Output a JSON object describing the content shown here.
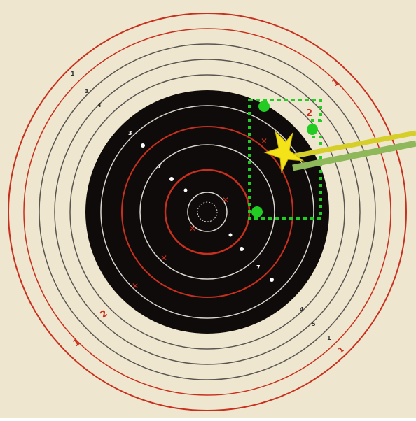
{
  "target": {
    "paper_color": "#efe6cf",
    "bull_color": "#0e0b0a",
    "ring_colors": {
      "red": "#c8301e",
      "gray": "#5a5550",
      "light": "#d8d6cf"
    },
    "outer_ring_labels": [
      {
        "text": "1",
        "color": "#c8301e"
      },
      {
        "text": "1",
        "color": "#c8301e"
      },
      {
        "text": "1",
        "color": "#c8301e"
      },
      {
        "text": "1",
        "color": "#333333"
      },
      {
        "text": "1",
        "color": "#333333"
      }
    ],
    "ring_2_labels": [
      {
        "text": "2",
        "color": "#c8301e"
      },
      {
        "text": "2",
        "color": "#c8301e"
      }
    ],
    "ring_3_labels": [
      {
        "text": "3",
        "color": "#333333"
      },
      {
        "text": "3",
        "color": "#ffffff"
      },
      {
        "text": "5",
        "color": "#333333"
      }
    ],
    "ring_4_labels": [
      {
        "text": "4",
        "color": "#333333"
      },
      {
        "text": "4",
        "color": "#333333"
      }
    ],
    "inner_labels": [
      {
        "text": "7",
        "color": "#ffffff"
      },
      {
        "text": "7",
        "color": "#ffffff"
      }
    ]
  },
  "overlay": {
    "highlight_color": "#22cc22",
    "star_color": "#f5e31a",
    "line_colors": [
      "#d6cf2a",
      "#8fb85a"
    ]
  }
}
